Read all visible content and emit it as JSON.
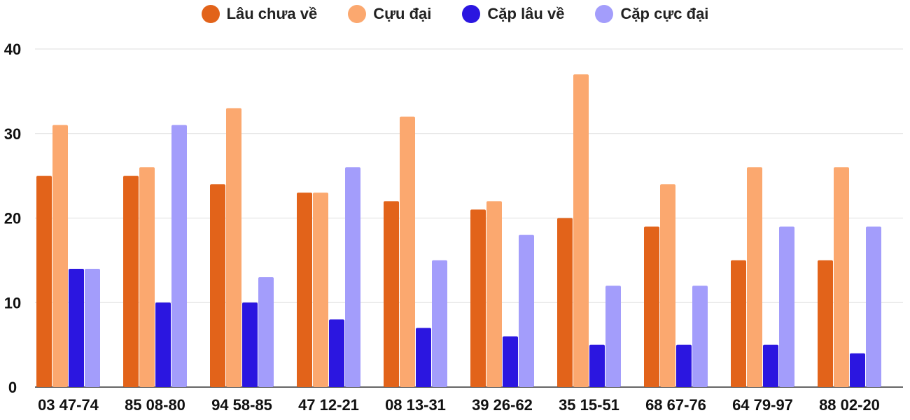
{
  "chart_data": {
    "type": "bar",
    "categories": [
      "03 47-74",
      "85 08-80",
      "94 58-85",
      "47 12-21",
      "08 13-31",
      "39 26-62",
      "35 15-51",
      "68 67-76",
      "64 79-97",
      "88 02-20"
    ],
    "series": [
      {
        "name": "Lâu chưa về",
        "color": "#e2631a",
        "values": [
          25,
          25,
          24,
          23,
          22,
          21,
          20,
          19,
          15,
          15
        ]
      },
      {
        "name": "Cựu đại",
        "color": "#fba86f",
        "values": [
          31,
          26,
          33,
          23,
          32,
          22,
          37,
          24,
          26,
          26
        ]
      },
      {
        "name": "Cặp lâu về",
        "color": "#2b16e0",
        "values": [
          14,
          10,
          10,
          8,
          7,
          6,
          5,
          5,
          5,
          4
        ]
      },
      {
        "name": "Cặp cực đại",
        "color": "#a39dfb",
        "values": [
          14,
          31,
          13,
          26,
          15,
          18,
          12,
          12,
          19,
          19
        ]
      }
    ],
    "ylim": [
      0,
      40
    ],
    "yticks": [
      0,
      10,
      20,
      30,
      40
    ],
    "grid": true,
    "legend_position": "top-center"
  }
}
